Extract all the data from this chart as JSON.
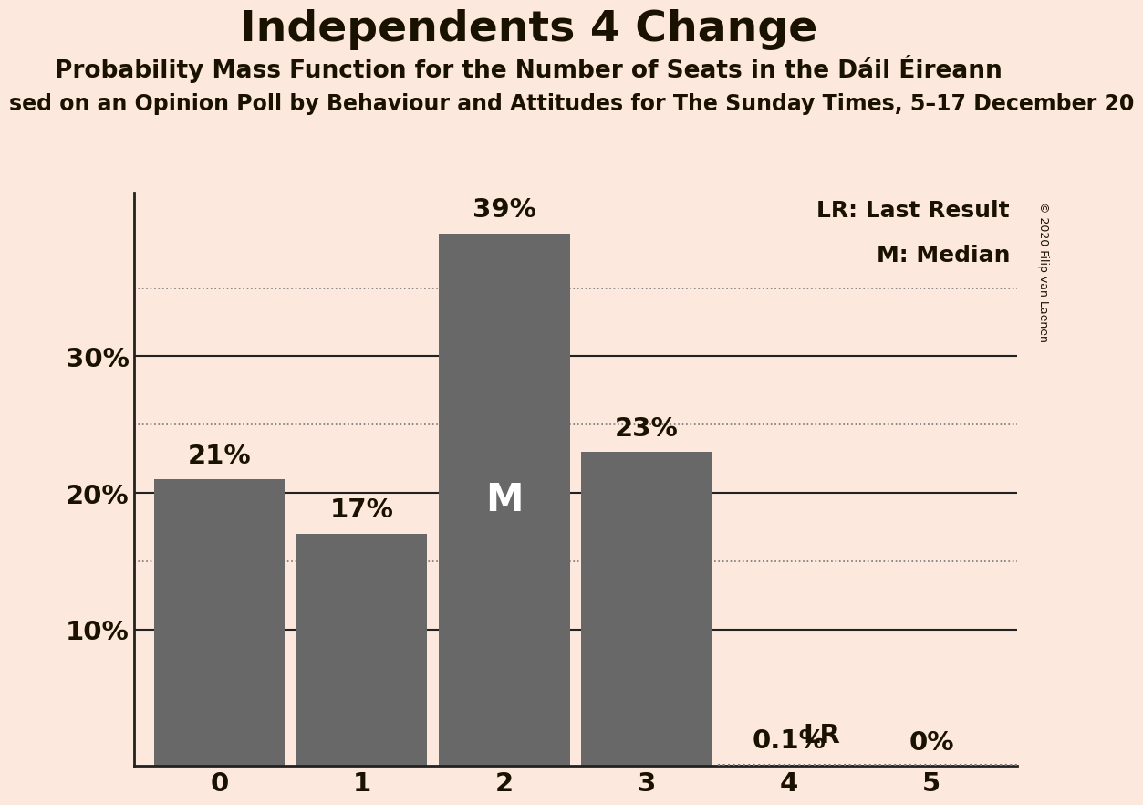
{
  "title": "Independents 4 Change",
  "subtitle": "Probability Mass Function for the Number of Seats in the Dáil Éireann",
  "sub_subtitle": "sed on an Opinion Poll by Behaviour and Attitudes for The Sunday Times, 5–17 December 20",
  "copyright": "© 2020 Filip van Laenen",
  "categories": [
    0,
    1,
    2,
    3,
    4,
    5
  ],
  "values": [
    21,
    17,
    39,
    23,
    0.1,
    0
  ],
  "bar_color": "#686868",
  "background_color": "#fce8dc",
  "ylabel_values": [
    10,
    20,
    30
  ],
  "ylim": [
    0,
    42
  ],
  "lr_value": 0.1,
  "lr_label": "LR",
  "median_bar": 2,
  "median_label": "M",
  "legend_lr": "LR: Last Result",
  "legend_m": "M: Median",
  "title_fontsize": 34,
  "subtitle_fontsize": 19,
  "sub_subtitle_fontsize": 17,
  "bar_label_fontsize": 21,
  "axis_label_fontsize": 21,
  "legend_fontsize": 18,
  "median_fontsize": 30,
  "text_color": "#1a1200",
  "dotted_color": "#777777",
  "solid_color": "#222222",
  "solid_gridline_values": [
    10,
    20,
    30
  ],
  "dotted_gridline_values": [
    15,
    25,
    35
  ],
  "lr_dotted_gridline": 5
}
